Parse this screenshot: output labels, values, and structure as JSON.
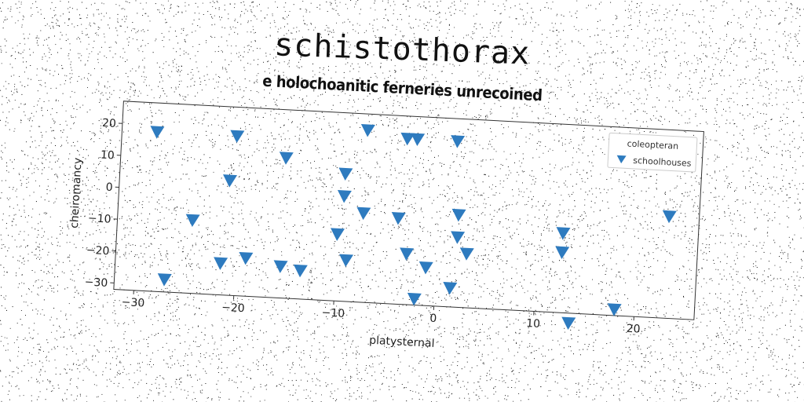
{
  "chart_data": {
    "type": "scatter",
    "title": "schistothorax",
    "subtitle": "e holochoanitic ferneries unrecoined",
    "xlabel": "platysternal",
    "ylabel": "cheiromancy",
    "xlim": [
      -32,
      26
    ],
    "ylim": [
      -32,
      27
    ],
    "x_ticks": [
      -30,
      -20,
      -10,
      0,
      10,
      20
    ],
    "x_tick_labels": [
      "−30",
      "−20",
      "−10",
      "0",
      "10",
      "20"
    ],
    "y_ticks": [
      20,
      10,
      0,
      -10,
      -20,
      -30
    ],
    "y_tick_labels": [
      "20",
      "10",
      "0",
      "−10",
      "−20",
      "−30"
    ],
    "grid": false,
    "legend": {
      "title": "coleopteran",
      "position": "top-right"
    },
    "series": [
      {
        "name": "schoolhouses",
        "marker": "triangle-down",
        "color": "#2e7bbf",
        "points": [
          [
            -28.5,
            18
          ],
          [
            -20.5,
            18
          ],
          [
            -15.5,
            12
          ],
          [
            -21,
            4
          ],
          [
            -24.5,
            -9
          ],
          [
            -27,
            -28
          ],
          [
            -21.5,
            -22
          ],
          [
            -19,
            -20
          ],
          [
            -15.5,
            -22
          ],
          [
            -13.5,
            -23
          ],
          [
            -9.5,
            8
          ],
          [
            -9.5,
            1
          ],
          [
            -7.5,
            -4
          ],
          [
            -10,
            -11
          ],
          [
            -9,
            -19
          ],
          [
            -7.5,
            22
          ],
          [
            -3.5,
            20
          ],
          [
            -2.5,
            20
          ],
          [
            -4,
            -5
          ],
          [
            -3,
            -16
          ],
          [
            -2,
            -30
          ],
          [
            -1,
            -20
          ],
          [
            1.5,
            20
          ],
          [
            2,
            -3
          ],
          [
            2,
            -10
          ],
          [
            3,
            -15
          ],
          [
            1.5,
            -26
          ],
          [
            12.5,
            -7
          ],
          [
            12.5,
            -13
          ],
          [
            13.5,
            -35
          ],
          [
            18,
            -30
          ],
          [
            23,
            0
          ]
        ]
      }
    ]
  }
}
